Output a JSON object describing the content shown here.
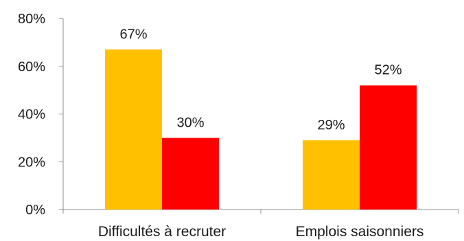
{
  "chart_data": {
    "type": "bar",
    "title": "",
    "xlabel": "",
    "ylabel": "",
    "categories": [
      "Difficultés à recruter",
      "Emplois saisonniers"
    ],
    "series": [
      {
        "values": [
          67,
          29
        ],
        "color": "#FFC000",
        "labels": [
          "67%",
          "29%"
        ]
      },
      {
        "values": [
          30,
          52
        ],
        "color": "#FF0000",
        "labels": [
          "30%",
          "52%"
        ]
      }
    ],
    "ylim": [
      0,
      80
    ],
    "y_ticks": [
      0,
      20,
      40,
      60,
      80
    ],
    "y_tick_labels": [
      "0%",
      "20%",
      "40%",
      "60%",
      "80%"
    ],
    "grid": false,
    "legend": "none"
  }
}
